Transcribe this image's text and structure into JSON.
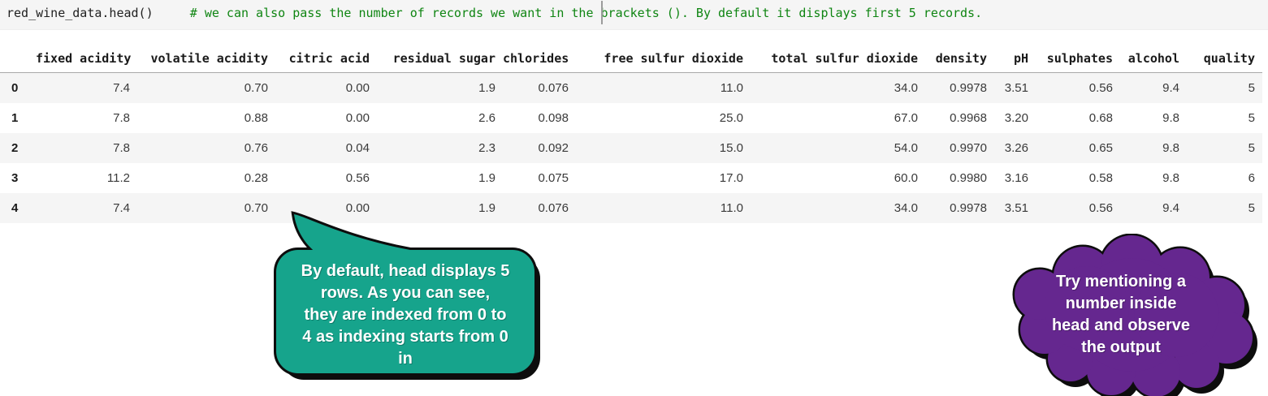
{
  "code_cell": {
    "code": "red_wine_data.head()",
    "gap": "     ",
    "comment_before_caret": "# we can also pass the number of records we want in the ",
    "comment_after_caret": "brackets (). By default it displays first 5 records."
  },
  "table": {
    "columns": [
      "fixed acidity",
      "volatile acidity",
      "citric acid",
      "residual sugar",
      "chlorides",
      "free sulfur dioxide",
      "total sulfur dioxide",
      "density",
      "pH",
      "sulphates",
      "alcohol",
      "quality"
    ],
    "rows": [
      {
        "index": "0",
        "values": [
          "7.4",
          "0.70",
          "0.00",
          "1.9",
          "0.076",
          "11.0",
          "34.0",
          "0.9978",
          "3.51",
          "0.56",
          "9.4",
          "5"
        ]
      },
      {
        "index": "1",
        "values": [
          "7.8",
          "0.88",
          "0.00",
          "2.6",
          "0.098",
          "25.0",
          "67.0",
          "0.9968",
          "3.20",
          "0.68",
          "9.8",
          "5"
        ]
      },
      {
        "index": "2",
        "values": [
          "7.8",
          "0.76",
          "0.04",
          "2.3",
          "0.092",
          "15.0",
          "54.0",
          "0.9970",
          "3.26",
          "0.65",
          "9.8",
          "5"
        ]
      },
      {
        "index": "3",
        "values": [
          "11.2",
          "0.28",
          "0.56",
          "1.9",
          "0.075",
          "17.0",
          "60.0",
          "0.9980",
          "3.16",
          "0.58",
          "9.8",
          "6"
        ]
      },
      {
        "index": "4",
        "values": [
          "7.4",
          "0.70",
          "0.00",
          "1.9",
          "0.076",
          "11.0",
          "34.0",
          "0.9978",
          "3.51",
          "0.56",
          "9.4",
          "5"
        ]
      }
    ]
  },
  "callouts": {
    "note": {
      "text": "By default, head displays 5\nrows. As you can see,\nthey are indexed from 0 to\n4 as indexing starts from 0\nin",
      "color": "#16a48c"
    },
    "cloud": {
      "text": "Try mentioning a\nnumber inside\nhead and observe\nthe output",
      "color": "#65278f"
    }
  },
  "colors": {
    "code_cell_bg": "#f5f5f5",
    "comment_green": "#0f8512",
    "row_stripe": "#f5f5f5",
    "callout_shadow": "#0d0d0d",
    "text_white": "#ffffff"
  }
}
